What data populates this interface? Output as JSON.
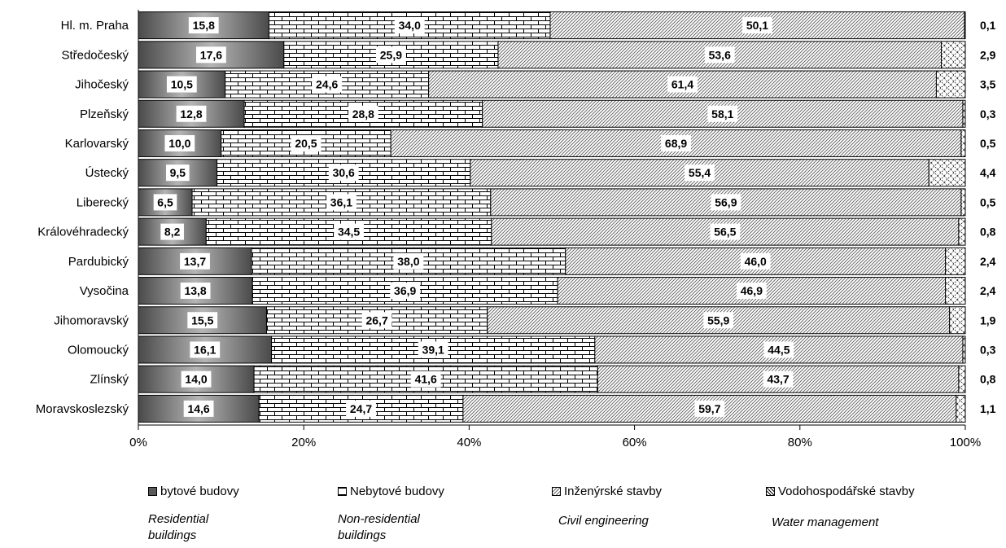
{
  "chart_data": {
    "type": "bar",
    "orientation": "horizontal",
    "stacked": "percent",
    "categories": [
      "Hl. m. Praha",
      "Středočeský",
      "Jihočeský",
      "Plzeňský",
      "Karlovarský",
      "Ústecký",
      "Liberecký",
      "Královéhradecký",
      "Pardubický",
      "Vysočina",
      "Jihomoravský",
      "Olomoucký",
      "Zlínský",
      "Moravskoslezský"
    ],
    "series": [
      {
        "name": "bytové budovy",
        "values": [
          15.8,
          17.6,
          10.5,
          12.8,
          10.0,
          9.5,
          6.5,
          8.2,
          13.7,
          13.8,
          15.5,
          16.1,
          14.0,
          14.6
        ]
      },
      {
        "name": "Nebytové budovy",
        "values": [
          34.0,
          25.9,
          24.6,
          28.8,
          20.5,
          30.6,
          36.1,
          34.5,
          38.0,
          36.9,
          26.7,
          39.1,
          41.6,
          24.7
        ]
      },
      {
        "name": "Inženýrské stavby",
        "values": [
          50.1,
          53.6,
          61.4,
          58.1,
          68.9,
          55.4,
          56.9,
          56.5,
          46.0,
          46.9,
          55.9,
          44.5,
          43.7,
          59.7
        ]
      },
      {
        "name": "Vodohospodářské stavby",
        "values": [
          0.1,
          2.9,
          3.5,
          0.3,
          0.5,
          4.4,
          0.5,
          0.8,
          2.4,
          2.4,
          1.9,
          0.3,
          0.8,
          1.1
        ]
      }
    ],
    "value_labels": {
      "bytove": [
        "15,8",
        "17,6",
        "10,5",
        "12,8",
        "10,0",
        "9,5",
        "6,5",
        "8,2",
        "13,7",
        "13,8",
        "15,5",
        "16,1",
        "14,0",
        "14,6"
      ],
      "nebytove": [
        "34,0",
        "25,9",
        "24,6",
        "28,8",
        "20,5",
        "30,6",
        "36,1",
        "34,5",
        "38,0",
        "36,9",
        "26,7",
        "39,1",
        "41,6",
        "24,7"
      ],
      "inzenyrske": [
        "50,1",
        "53,6",
        "61,4",
        "58,1",
        "68,9",
        "55,4",
        "56,9",
        "56,5",
        "46,0",
        "46,9",
        "55,9",
        "44,5",
        "43,7",
        "59,7"
      ],
      "vodohospodarske": [
        "0,1",
        "2,9",
        "3,5",
        "0,3",
        "0,5",
        "4,4",
        "0,5",
        "0,8",
        "2,4",
        "2,4",
        "1,9",
        "0,3",
        "0,8",
        "1,1"
      ]
    },
    "x_ticks": [
      "0%",
      "20%",
      "40%",
      "60%",
      "80%",
      "100%"
    ],
    "xlim": [
      0,
      100
    ],
    "grid": false,
    "legend_position": "bottom",
    "legend": [
      {
        "label": "bytové budovy",
        "sublabel_1": "Residential",
        "sublabel_2": "buildings"
      },
      {
        "label": "Nebytové budovy",
        "sublabel_1": "Non-residential",
        "sublabel_2": "buildings"
      },
      {
        "label": "Inženýrské stavby",
        "sublabel_1": "Civil engineering",
        "sublabel_2": ""
      },
      {
        "label": "Vodohospodářské stavby",
        "sublabel_1": "Water management",
        "sublabel_2": ""
      }
    ]
  }
}
